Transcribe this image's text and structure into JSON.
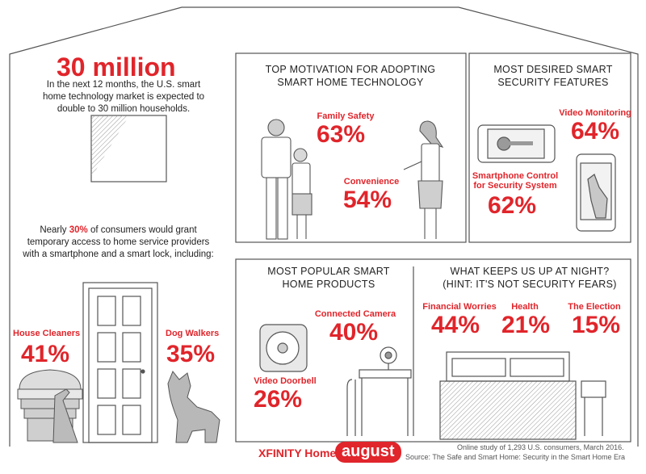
{
  "stat_30m": {
    "number": "30 million",
    "text": "In the next 12 months, the U.S. smart home technology market is expected to double to 30 million households."
  },
  "access": {
    "text_before": "Nearly ",
    "percent": "30%",
    "text_after": " of consumers would grant temporary access to home service providers with a smartphone and a smart lock, including:",
    "house_cleaners_label": "House Cleaners",
    "house_cleaners_value": "41%",
    "dog_walkers_label": "Dog Walkers",
    "dog_walkers_value": "35%"
  },
  "motivation": {
    "heading": "TOP MOTIVATION FOR ADOPTING SMART HOME TECHNOLOGY",
    "family_label": "Family Safety",
    "family_value": "63%",
    "convenience_label": "Convenience",
    "convenience_value": "54%"
  },
  "security": {
    "heading": "MOST DESIRED SMART SECURITY FEATURES",
    "video_label": "Video Monitoring",
    "video_value": "64%",
    "smartphone_label": "Smartphone Control for Security System",
    "smartphone_value": "62%"
  },
  "products": {
    "heading": "MOST POPULAR SMART HOME PRODUCTS",
    "camera_label": "Connected Camera",
    "camera_value": "40%",
    "doorbell_label": "Video Doorbell",
    "doorbell_value": "26%"
  },
  "night": {
    "heading": "WHAT KEEPS US UP AT NIGHT? (HINT: IT'S NOT SECURITY FEARS)",
    "financial_label": "Financial Worries",
    "financial_value": "44%",
    "health_label": "Health",
    "health_value": "21%",
    "election_label": "The Election",
    "election_value": "15%"
  },
  "footer": {
    "xfinity": "XFINITY Home",
    "august": "august",
    "source_line1": "Online study of 1,293 U.S. consumers, March 2016.",
    "source_line2": "Source: The Safe and Smart Home: Security in the Smart Home Era"
  },
  "colors": {
    "accent": "#e0252b",
    "line": "#555555",
    "fill": "#cfcfcf"
  }
}
